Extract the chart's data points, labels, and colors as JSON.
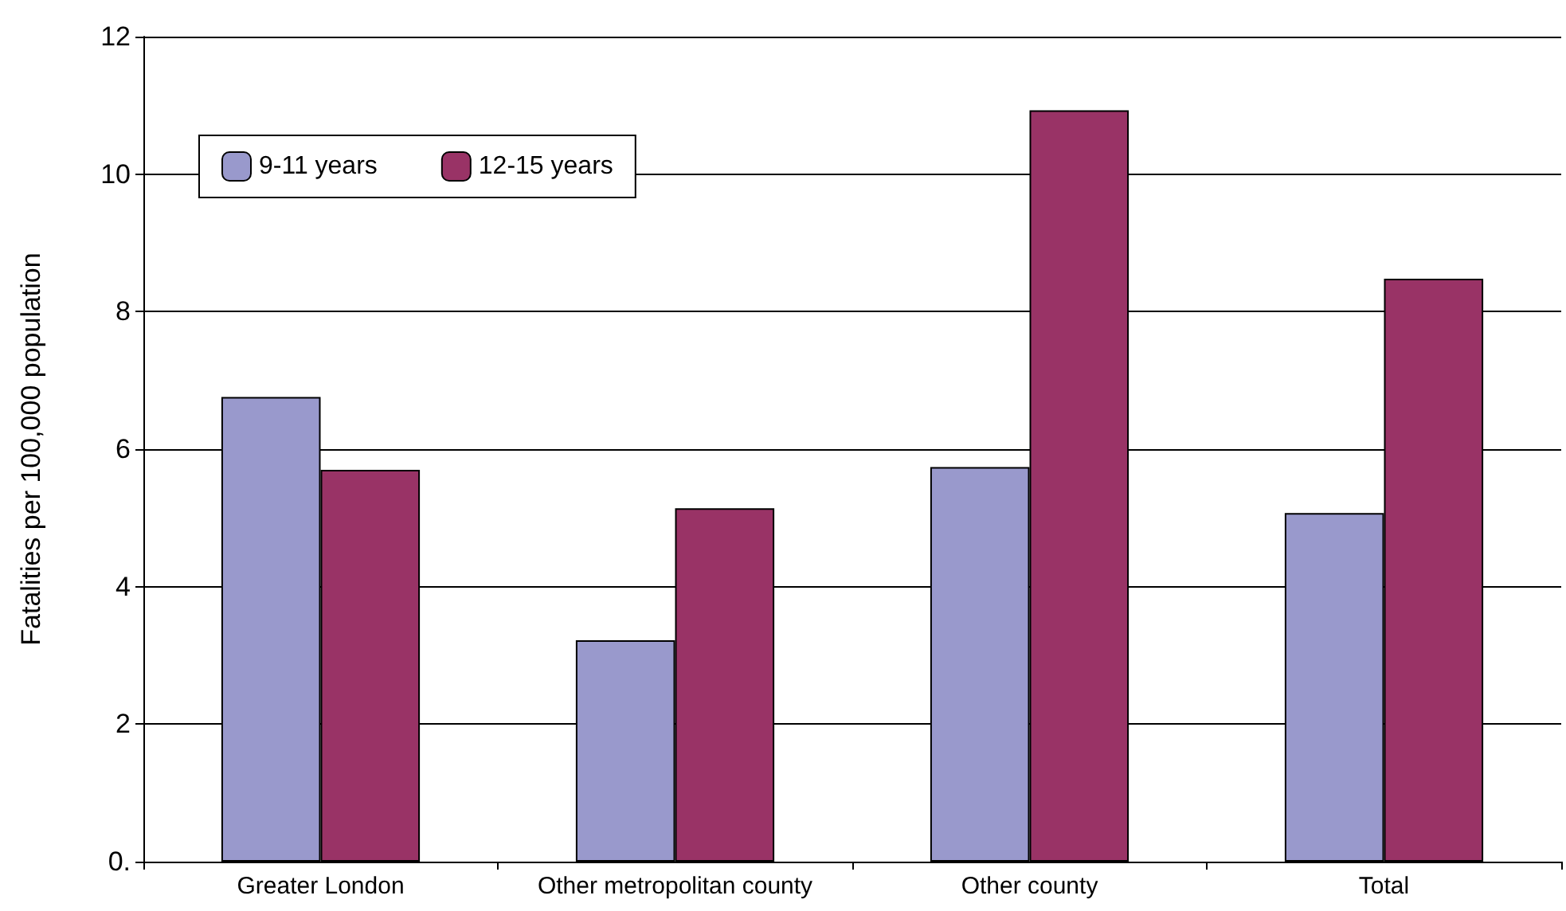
{
  "chart_data": {
    "type": "bar",
    "ylabel": "Fatalities per 100,000 population",
    "categories": [
      "Greater London",
      "Other metropolitan county",
      "Other county",
      "Total"
    ],
    "series": [
      {
        "name": "9-11 years",
        "color": "#9999cc",
        "values": [
          6.76,
          3.22,
          5.74,
          5.07
        ]
      },
      {
        "name": "12-15 years",
        "color": "#993366",
        "values": [
          5.7,
          5.14,
          10.93,
          8.48
        ]
      }
    ],
    "ylim": [
      0,
      12
    ],
    "yticks": [
      {
        "value": 0,
        "label": "0."
      },
      2,
      4,
      6,
      8,
      10,
      12
    ],
    "grid": "y",
    "legend": "top left"
  }
}
